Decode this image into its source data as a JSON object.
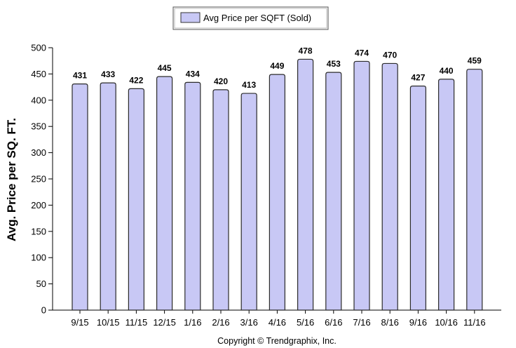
{
  "chart_data": {
    "type": "bar",
    "categories": [
      "9/15",
      "10/15",
      "11/15",
      "12/15",
      "1/16",
      "2/16",
      "3/16",
      "4/16",
      "5/16",
      "6/16",
      "7/16",
      "8/16",
      "9/16",
      "10/16",
      "11/16"
    ],
    "series": [
      {
        "name": "Avg Price per SQFT (Sold)",
        "values": [
          431,
          433,
          422,
          445,
          434,
          420,
          413,
          449,
          478,
          453,
          474,
          470,
          427,
          440,
          459
        ]
      }
    ],
    "title": "",
    "xlabel": "",
    "ylabel": "Avg. Price per SQ. FT.",
    "ylim": [
      0,
      500
    ],
    "yticks": [
      0,
      50,
      100,
      150,
      200,
      250,
      300,
      350,
      400,
      450,
      500
    ],
    "grid": false,
    "legend_position": "top-center",
    "bar_color": "#c8c8f5",
    "bar_edge_color": "#2b2b2b",
    "data_labels": true
  },
  "footer": {
    "copyright": "Copyright © Trendgraphix, Inc."
  }
}
